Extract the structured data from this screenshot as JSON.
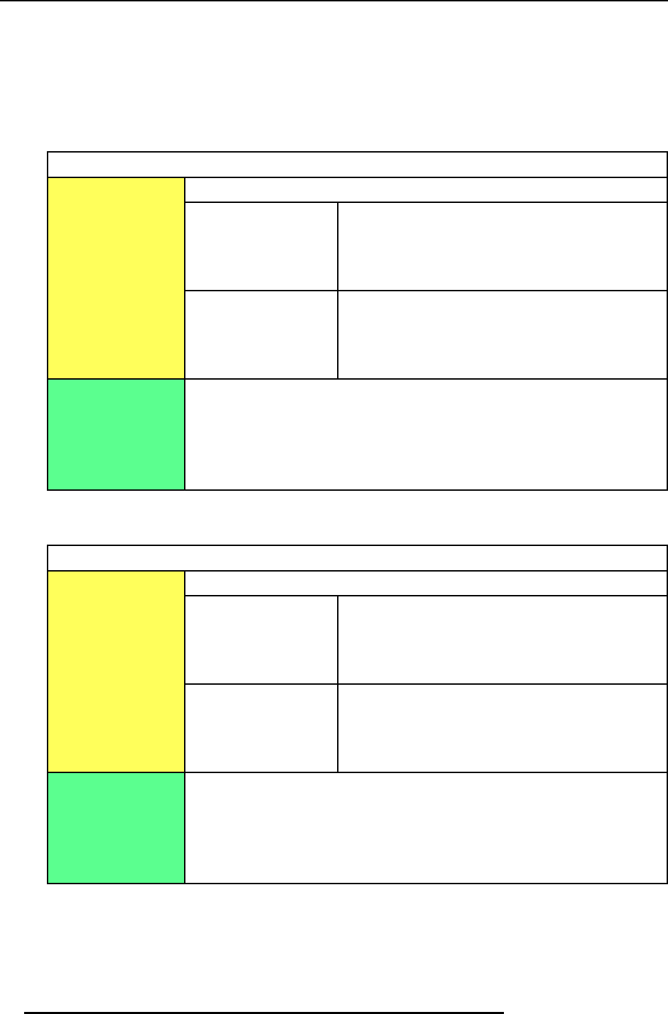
{
  "document": {
    "tables": [
      {
        "title": "",
        "colors": {
          "label_top": "#ffff5b",
          "label_bottom": "#5bff8f"
        }
      },
      {
        "title": "",
        "colors": {
          "label_top": "#ffff5b",
          "label_bottom": "#5bff8f"
        }
      }
    ]
  }
}
